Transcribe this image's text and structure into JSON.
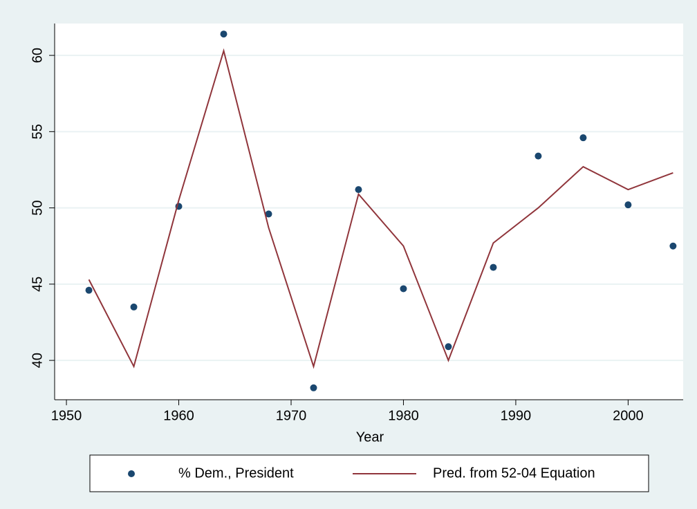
{
  "chart_data": {
    "type": "combo",
    "x_label": "Year",
    "x": [
      1952,
      1956,
      1960,
      1964,
      1968,
      1972,
      1976,
      1980,
      1984,
      1988,
      1992,
      1996,
      2000,
      2004
    ],
    "series": [
      {
        "name": "% Dem., President",
        "type": "scatter",
        "color": "#1a476f",
        "values": [
          44.6,
          43.5,
          50.1,
          61.4,
          49.6,
          38.2,
          51.2,
          44.7,
          40.9,
          46.1,
          53.4,
          54.6,
          50.2,
          47.5
        ]
      },
      {
        "name": "Pred. from 52-04 Equation",
        "type": "line",
        "color": "#90353b",
        "values": [
          45.3,
          39.6,
          50.5,
          60.3,
          48.7,
          39.6,
          50.9,
          47.5,
          40.0,
          47.7,
          50.0,
          52.7,
          51.2,
          52.3
        ]
      }
    ],
    "xlim": [
      1948.95,
      2004.9
    ],
    "xticks": [
      1950,
      1960,
      1970,
      1980,
      1990,
      2000
    ],
    "ylim": [
      37.42,
      62.09
    ],
    "yticks": [
      40,
      45,
      50,
      55,
      60
    ],
    "grid": true,
    "legend": "bottom"
  }
}
